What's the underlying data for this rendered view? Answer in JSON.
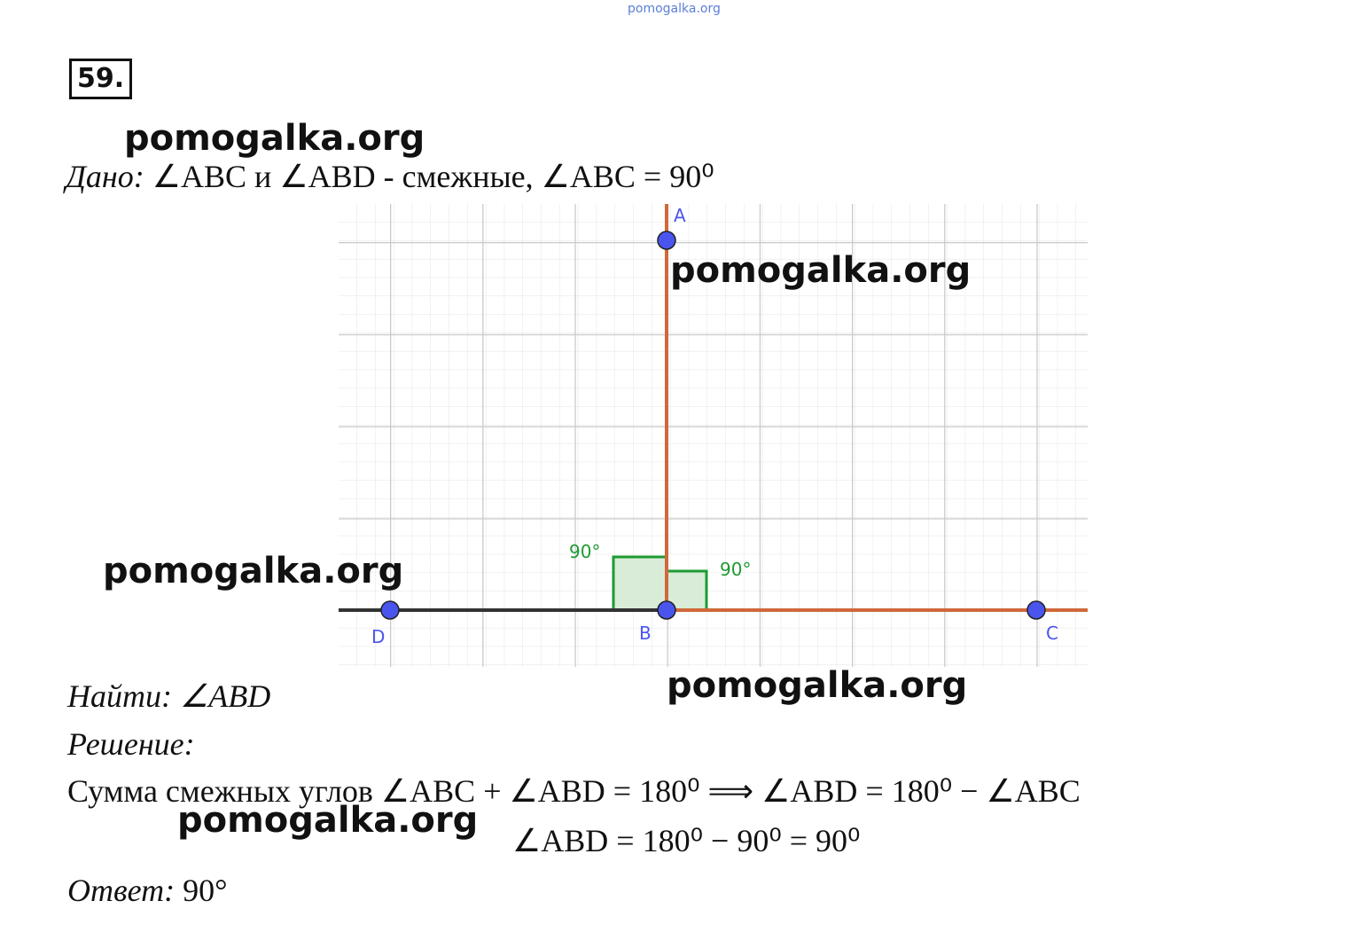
{
  "watermarks": [
    "pomogalka.org",
    "pomogalka.org",
    "pomogalka.org",
    "pomogalka.org",
    "pomogalka.org",
    "pomogalka.org"
  ],
  "number": "59.",
  "given": {
    "label": "Дано:",
    "text": "∠ABC и ∠ABD - смежные, ∠ABC = 90⁰"
  },
  "figure": {
    "points": [
      {
        "label": "A"
      },
      {
        "label": "B"
      },
      {
        "label": "C"
      },
      {
        "label": "D"
      }
    ],
    "angles": [
      "90°",
      "90°"
    ]
  },
  "find": {
    "label": "Найти:",
    "text": "∠ABD"
  },
  "solution": {
    "label": "Решение:",
    "lines": [
      "Сумма смежных углов ∠ABC + ∠ABD = 180⁰ ⟹ ∠ABD = 180⁰ − ∠ABC",
      "∠ABD = 180⁰ − 90⁰ = 90⁰"
    ]
  },
  "answer": {
    "label": "Ответ:",
    "text": "90°"
  }
}
